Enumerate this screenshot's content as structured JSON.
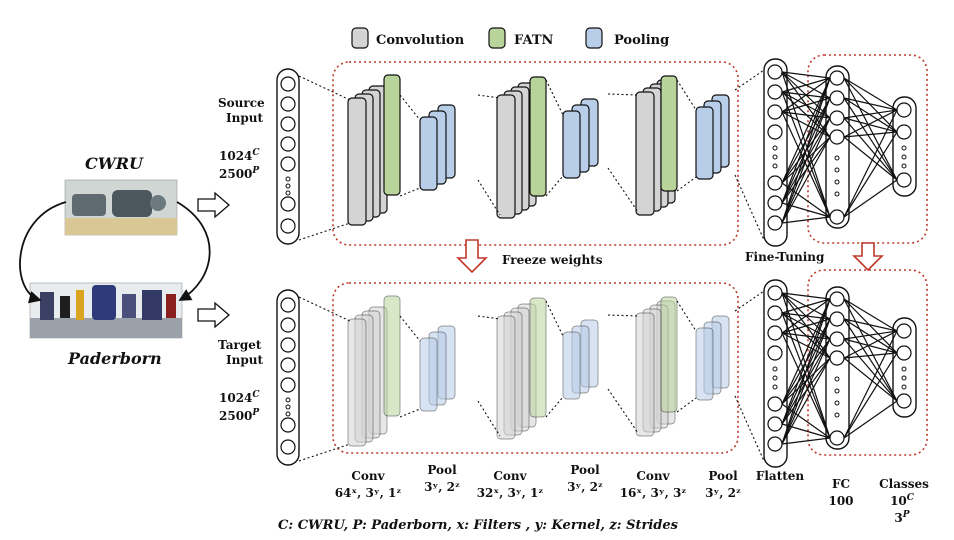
{
  "legend": {
    "convolution": "Convolution",
    "fatn": "FATN",
    "pooling": "Pooling"
  },
  "colors": {
    "convolution": "#d4d4d4",
    "fatn": "#b8d49a",
    "pooling": "#b7cde8",
    "dotted_box": "#c0392b",
    "transfer_arrow": "#c0392b"
  },
  "datasets": {
    "source_name": "CWRU",
    "target_name": "Paderborn"
  },
  "source_input": {
    "label_line1": "Source",
    "label_line2": "Input",
    "size_c": "1024",
    "sup_c": "C",
    "size_p": "2500",
    "sup_p": "P"
  },
  "target_input": {
    "label_line1": "Target",
    "label_line2": "Input",
    "size_c": "1024",
    "sup_c": "C",
    "size_p": "2500",
    "sup_p": "P"
  },
  "freeze_label": "Freeze weights",
  "finetune_label": "Fine-Tuning",
  "layers": [
    {
      "name": "Conv",
      "spec": "64ˣ, 3ʸ, 1ᶻ"
    },
    {
      "name": "Pool",
      "spec": "3ʸ, 2ᶻ"
    },
    {
      "name": "Conv",
      "spec": "32ˣ, 3ʸ, 1ᶻ"
    },
    {
      "name": "Pool",
      "spec": "3ʸ, 2ᶻ"
    },
    {
      "name": "Conv",
      "spec": "16ˣ, 3ʸ, 3ᶻ"
    },
    {
      "name": "Pool",
      "spec": "3ʸ, 2ᶻ"
    },
    {
      "name": "Flatten",
      "spec": ""
    }
  ],
  "fc": {
    "name": "FC",
    "units": "100"
  },
  "classes": {
    "name": "Classes",
    "value_c": "10",
    "sup_c": "C",
    "value_p": "3",
    "sup_p": "P"
  },
  "caption": "C: CWRU, P: Paderborn, x: Filters , y: Kernel, z: Strides"
}
